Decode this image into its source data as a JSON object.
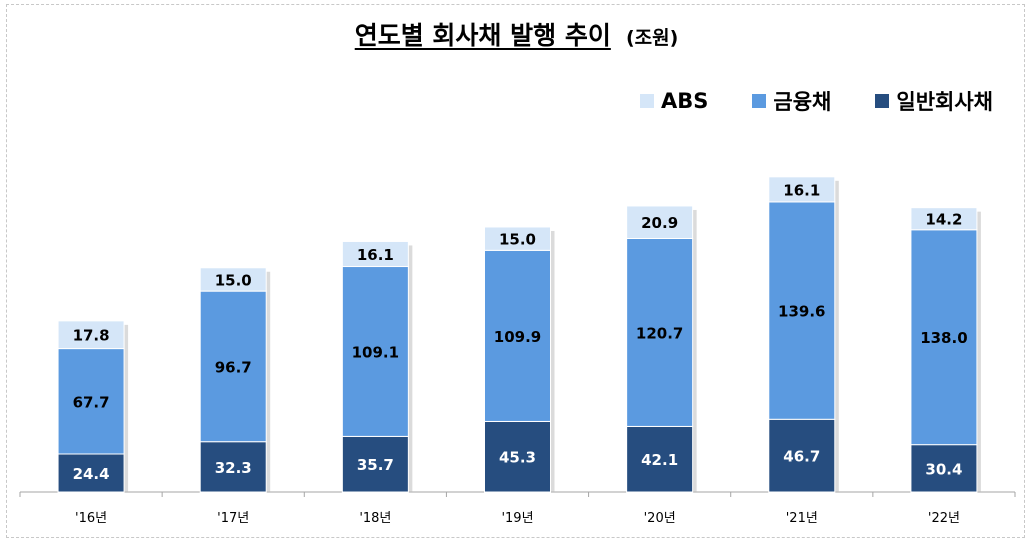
{
  "chart_data": {
    "type": "bar",
    "stacked": true,
    "title": "연도별 회사채 발행 추이",
    "unit": "(조원)",
    "categories": [
      "'16년",
      "'17년",
      "'18년",
      "'19년",
      "'20년",
      "'21년",
      "'22년"
    ],
    "series": [
      {
        "name": "일반회사채",
        "color": "#264d7f",
        "label_color": "#ffffff",
        "values": [
          24.4,
          32.3,
          35.7,
          45.3,
          42.1,
          46.7,
          30.4
        ]
      },
      {
        "name": "금융채",
        "color": "#5b9ae0",
        "label_color": "#000000",
        "values": [
          67.7,
          96.7,
          109.1,
          109.9,
          120.7,
          139.6,
          138.0
        ]
      },
      {
        "name": "ABS",
        "color": "#d5e6f8",
        "label_color": "#000000",
        "values": [
          17.8,
          15.0,
          16.1,
          15.0,
          20.9,
          16.1,
          14.2
        ]
      }
    ],
    "legend_order": [
      "ABS",
      "금융채",
      "일반회사채"
    ],
    "legend_position": "top-right",
    "ylim": [
      0,
      210
    ],
    "grid": false
  }
}
